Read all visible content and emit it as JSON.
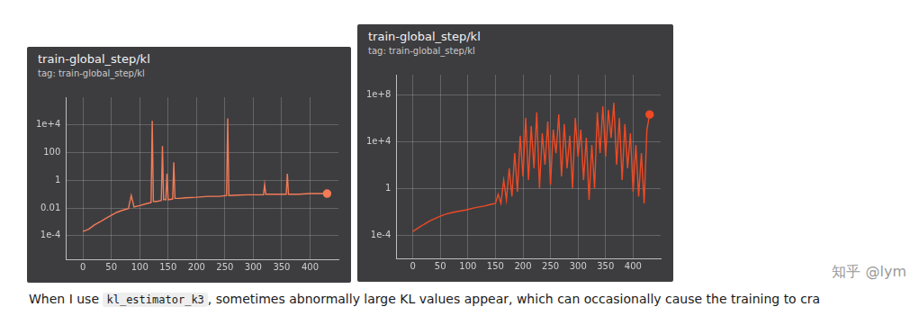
{
  "chart_data": [
    {
      "type": "line",
      "title": "train-global_step/kl",
      "subtitle": "tag: train-global_step/kl",
      "color": "#f37b56",
      "log": "y",
      "grid": true,
      "x": [
        0,
        10,
        20,
        30,
        40,
        50,
        60,
        70,
        80,
        85,
        90,
        100,
        110,
        120,
        122,
        124,
        130,
        138,
        140,
        142,
        146,
        148,
        150,
        158,
        160,
        162,
        170,
        180,
        200,
        220,
        240,
        253,
        255,
        257,
        270,
        290,
        310,
        318,
        320,
        322,
        340,
        358,
        360,
        362,
        380,
        400,
        420,
        430
      ],
      "values": [
        0.0002,
        0.0003,
        0.0006,
        0.001,
        0.0018,
        0.003,
        0.005,
        0.007,
        0.009,
        0.08,
        0.012,
        0.015,
        0.02,
        0.025,
        20000,
        0.03,
        0.03,
        0.035,
        300,
        0.04,
        0.04,
        3,
        0.04,
        0.045,
        20,
        0.05,
        0.05,
        0.055,
        0.06,
        0.07,
        0.07,
        0.08,
        30000,
        0.08,
        0.085,
        0.09,
        0.09,
        0.09,
        0.5,
        0.1,
        0.1,
        0.1,
        3,
        0.1,
        0.1,
        0.11,
        0.11,
        0.11
      ],
      "xlim": [
        -30,
        450
      ],
      "xticks": [
        0,
        50,
        100,
        150,
        200,
        250,
        300,
        350,
        400
      ],
      "ylim": [
        2e-06,
        1000000
      ],
      "yticks": [
        {
          "value": 0.0001,
          "label": "1e-4"
        },
        0.01,
        1,
        100,
        {
          "value": 10000,
          "label": "1e+4"
        }
      ]
    },
    {
      "type": "line",
      "title": "train-global_step/kl",
      "subtitle": "tag: train-global_step/kl",
      "color": "#ee4a24",
      "log": "y",
      "grid": true,
      "x": [
        0,
        10,
        20,
        30,
        40,
        50,
        60,
        70,
        80,
        90,
        100,
        110,
        120,
        130,
        140,
        150,
        155,
        160,
        165,
        170,
        175,
        180,
        185,
        190,
        195,
        200,
        205,
        210,
        215,
        220,
        225,
        230,
        235,
        240,
        245,
        250,
        255,
        260,
        265,
        270,
        275,
        280,
        285,
        290,
        295,
        300,
        305,
        310,
        315,
        320,
        325,
        330,
        335,
        340,
        345,
        350,
        355,
        360,
        365,
        370,
        375,
        380,
        385,
        390,
        395,
        400,
        405,
        410,
        415,
        420,
        425,
        430
      ],
      "values": [
        0.0002,
        0.0004,
        0.0008,
        0.0015,
        0.0025,
        0.004,
        0.006,
        0.008,
        0.01,
        0.012,
        0.015,
        0.02,
        0.025,
        0.03,
        0.04,
        0.05,
        0.3,
        0.05,
        5,
        0.1,
        50,
        0.2,
        1000,
        0.5,
        30000,
        10,
        1000000,
        5,
        200000,
        50,
        3000000,
        1,
        50000,
        100,
        500000,
        2,
        100000,
        1000,
        2000000,
        10,
        300000,
        50,
        30000,
        1,
        1000000,
        500,
        100000,
        5,
        20000,
        0.1,
        5000,
        1,
        3000000,
        1000,
        10000000,
        500,
        5000000,
        20000,
        20000000,
        100,
        1000000,
        5,
        300000,
        50,
        50000,
        0.5,
        5000,
        0.2,
        1000,
        0.05,
        100000,
        2000000
      ],
      "xlim": [
        -30,
        450
      ],
      "xticks": [
        0,
        50,
        100,
        150,
        200,
        250,
        300,
        350,
        400
      ],
      "ylim": [
        1e-06,
        5000000000
      ],
      "yticks": [
        {
          "value": 0.0001,
          "label": "1e-4"
        },
        1,
        {
          "value": 10000,
          "label": "1e+4"
        },
        {
          "value": 100000000,
          "label": "1e+8"
        }
      ]
    }
  ],
  "caption": {
    "before": "When I use ",
    "code": "kl_estimator_k3",
    "after": ", sometimes abnormally large KL values appear, which can occasionally cause the training to cra"
  },
  "watermark": "知乎 @lym"
}
